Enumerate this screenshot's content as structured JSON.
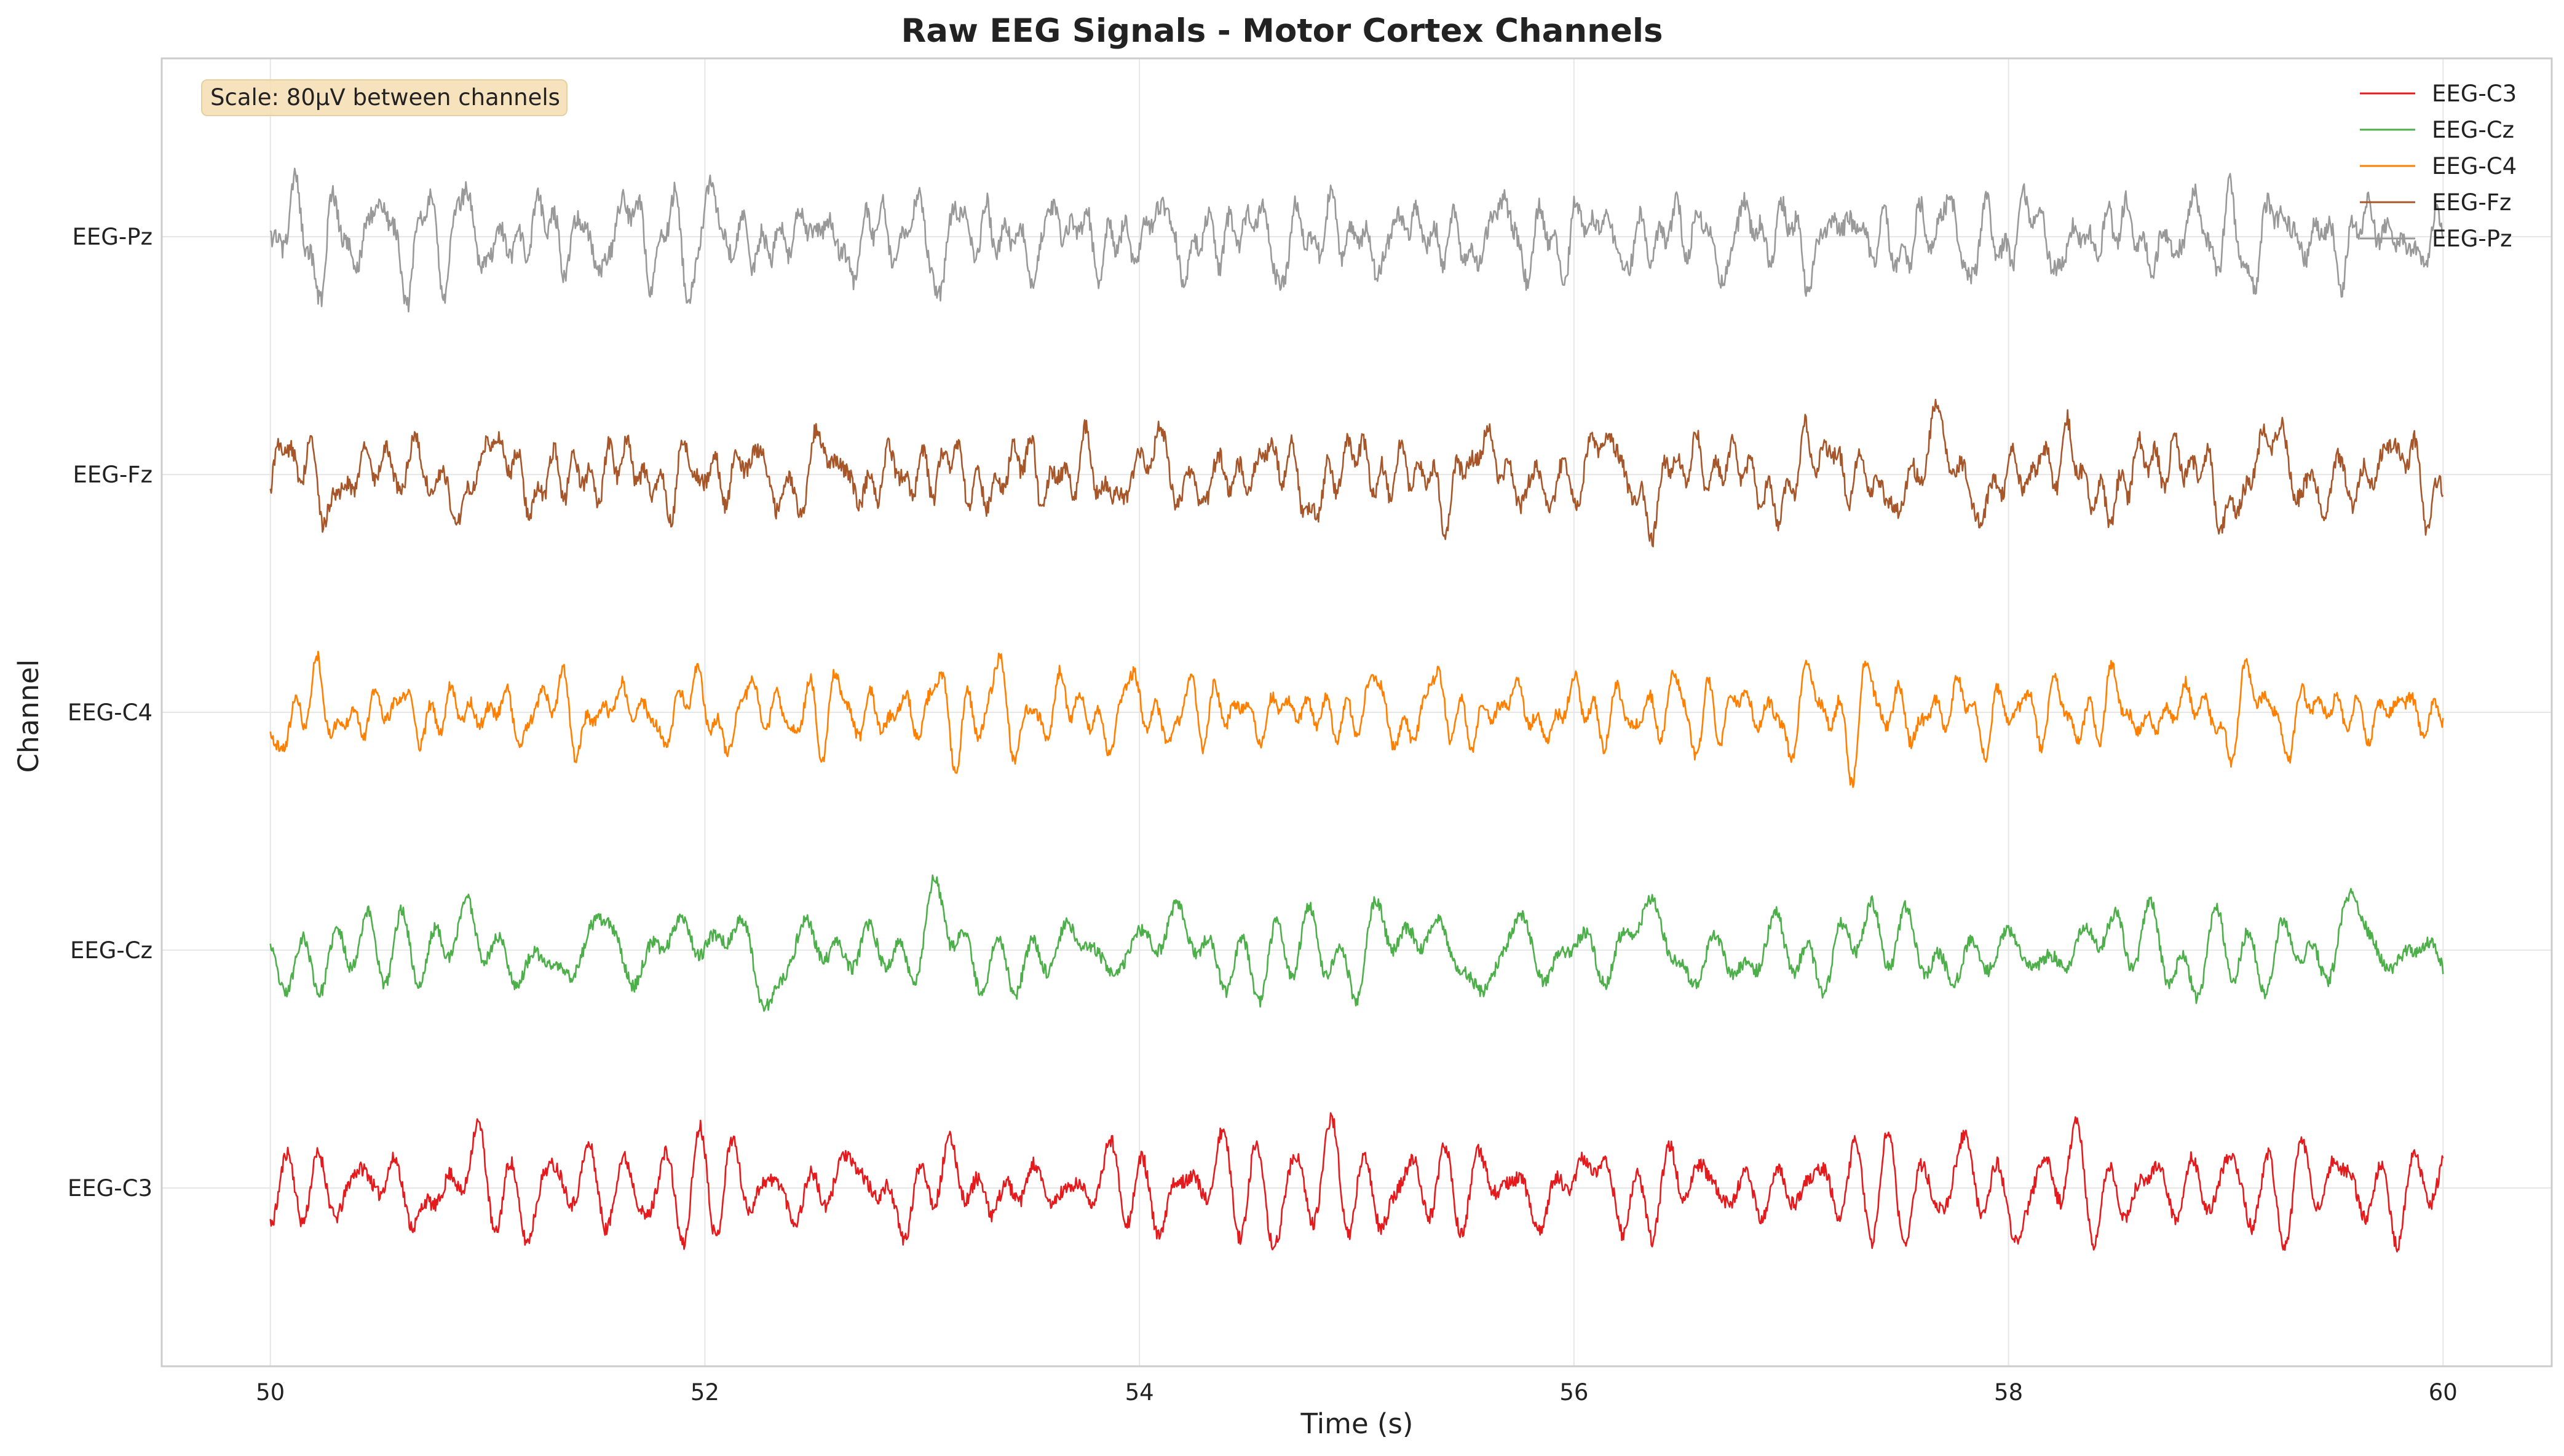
{
  "chart_data": {
    "type": "line",
    "title": "Raw EEG Signals - Motor Cortex Channels",
    "xlabel": "Time (s)",
    "ylabel": "Channel",
    "xlim": [
      49.5,
      60.5
    ],
    "ylim": [
      -60,
      380
    ],
    "x_ticks": [
      50,
      52,
      54,
      56,
      58,
      60
    ],
    "x_tick_labels": [
      "50",
      "52",
      "54",
      "56",
      "58",
      "60"
    ],
    "y_ticks": [
      0,
      80,
      160,
      240,
      320
    ],
    "y_tick_labels": [
      "EEG-C3",
      "EEG-Cz",
      "EEG-C4",
      "EEG-Fz",
      "EEG-Pz"
    ],
    "grid": true,
    "legend_position": "top-right",
    "annotation": "Scale: 80μV between channels",
    "channel_spacing_uV": 80,
    "time_range": [
      50,
      60
    ],
    "series": [
      {
        "name": "EEG-C3",
        "color": "#e41a1c",
        "offset": 0,
        "seed": 11,
        "amplitude": 12
      },
      {
        "name": "EEG-Cz",
        "color": "#4daf4a",
        "offset": 80,
        "seed": 23,
        "amplitude": 12
      },
      {
        "name": "EEG-C4",
        "color": "#ff7f00",
        "offset": 160,
        "seed": 37,
        "amplitude": 12
      },
      {
        "name": "EEG-Fz",
        "color": "#a65628",
        "offset": 240,
        "seed": 51,
        "amplitude": 12
      },
      {
        "name": "EEG-Pz",
        "color": "#999999",
        "offset": 320,
        "seed": 67,
        "amplitude": 12
      }
    ]
  }
}
